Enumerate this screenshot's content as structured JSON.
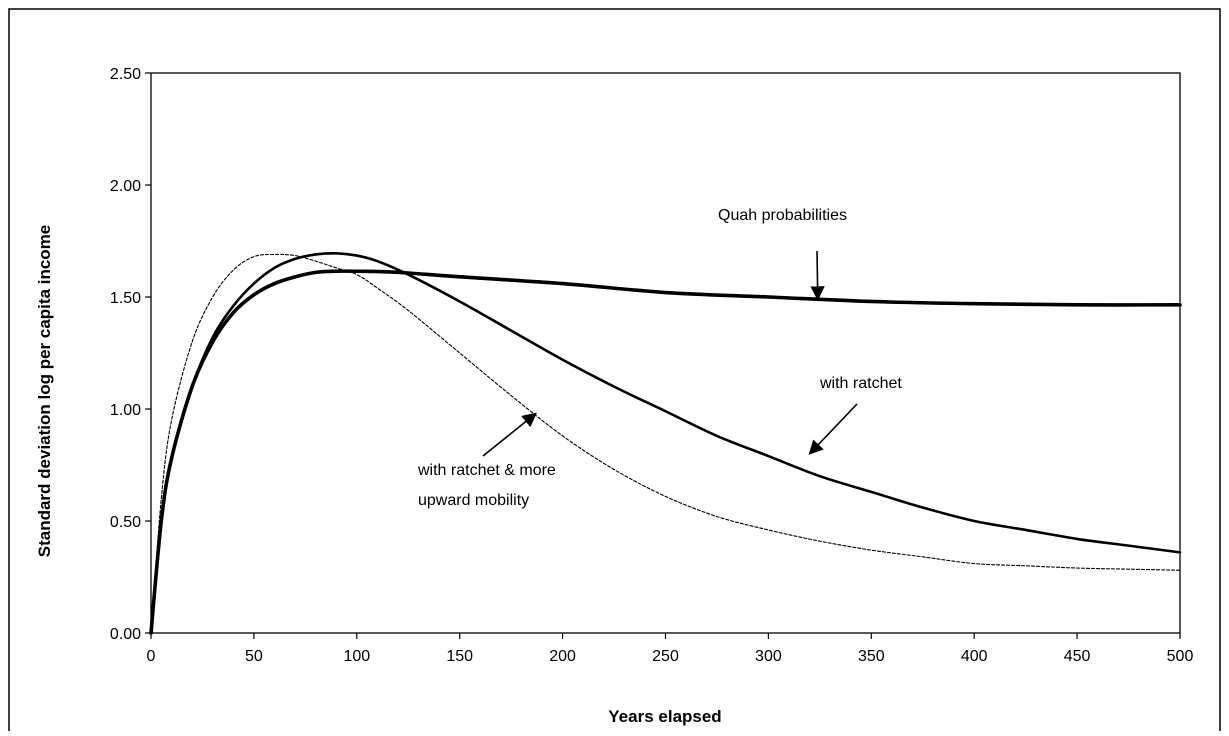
{
  "chart_data": {
    "type": "line",
    "title": "",
    "xlabel": "Years elapsed",
    "ylabel": "Standard deviation log per capita income",
    "xlim": [
      0,
      500
    ],
    "ylim": [
      0,
      2.5
    ],
    "x_ticks": [
      "0",
      "50",
      "100",
      "150",
      "200",
      "250",
      "300",
      "350",
      "400",
      "450",
      "500"
    ],
    "y_ticks": [
      "0.00",
      "0.50",
      "1.00",
      "1.50",
      "2.00",
      "2.50"
    ],
    "grid": false,
    "legend": "none",
    "series": [
      {
        "name": "Quah probabilities",
        "style": "thick-solid",
        "x": [
          0,
          5,
          10,
          20,
          30,
          40,
          50,
          60,
          70,
          80,
          90,
          100,
          120,
          150,
          200,
          250,
          300,
          350,
          400,
          450,
          500
        ],
        "y": [
          0,
          0.5,
          0.78,
          1.1,
          1.3,
          1.43,
          1.51,
          1.56,
          1.59,
          1.61,
          1.615,
          1.615,
          1.61,
          1.59,
          1.56,
          1.52,
          1.5,
          1.48,
          1.47,
          1.465,
          1.465
        ]
      },
      {
        "name": "with ratchet",
        "style": "medium-solid",
        "x": [
          0,
          5,
          10,
          20,
          30,
          40,
          50,
          60,
          70,
          80,
          90,
          100,
          110,
          125,
          150,
          175,
          200,
          225,
          250,
          275,
          300,
          325,
          350,
          375,
          400,
          425,
          450,
          475,
          500
        ],
        "y": [
          0,
          0.5,
          0.78,
          1.1,
          1.32,
          1.46,
          1.56,
          1.63,
          1.67,
          1.69,
          1.695,
          1.685,
          1.66,
          1.6,
          1.48,
          1.35,
          1.22,
          1.1,
          0.99,
          0.88,
          0.79,
          0.7,
          0.63,
          0.56,
          0.5,
          0.46,
          0.42,
          0.39,
          0.36
        ]
      },
      {
        "name": "with ratchet & more upward mobility",
        "style": "thin-dashed",
        "x": [
          0,
          5,
          10,
          20,
          30,
          40,
          50,
          60,
          70,
          80,
          90,
          100,
          110,
          125,
          150,
          175,
          200,
          225,
          250,
          275,
          300,
          325,
          350,
          375,
          400,
          425,
          450,
          475,
          500
        ],
        "y": [
          0,
          0.6,
          0.95,
          1.3,
          1.5,
          1.62,
          1.68,
          1.69,
          1.685,
          1.66,
          1.63,
          1.6,
          1.54,
          1.44,
          1.25,
          1.06,
          0.88,
          0.73,
          0.61,
          0.52,
          0.46,
          0.41,
          0.37,
          0.34,
          0.31,
          0.3,
          0.29,
          0.285,
          0.28
        ]
      }
    ],
    "annotations": [
      {
        "text_lines": [
          "Quah probabilities"
        ],
        "arrow_to": [
          324,
          1.49
        ]
      },
      {
        "text_lines": [
          "with ratchet"
        ],
        "arrow_to": [
          320,
          0.8
        ]
      },
      {
        "text_lines": [
          "with ratchet & more",
          "upward mobility"
        ],
        "arrow_to": [
          187,
          0.98
        ]
      }
    ]
  }
}
